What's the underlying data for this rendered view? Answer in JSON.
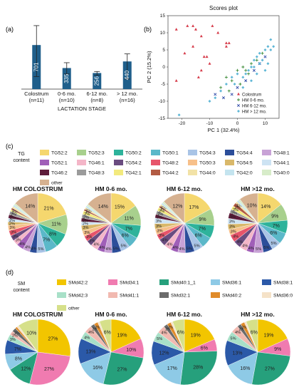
{
  "chart_data": [
    {
      "panel": "(a)",
      "type": "bar",
      "xlabel": "LACTATION STAGE",
      "categories": [
        "Colostrum\n(n=11)",
        "0-6 mo.\n(n=10)",
        "6-12 mo.\n(n=8)",
        "> 12 mo.\n(n=16)"
      ],
      "values": [
        701,
        335,
        256,
        440
      ],
      "error_up": [
        1010,
        420,
        280,
        560
      ],
      "error_down": [
        200,
        240,
        220,
        160
      ],
      "ylim": [
        0,
        1100
      ]
    },
    {
      "panel": "(b)",
      "type": "scatter",
      "title": "Scores plot",
      "xlabel": "PC 1 (32.4%)",
      "ylabel": "PC 2 (15.2%)",
      "xlim": [
        -25,
        15
      ],
      "ylim": [
        -15,
        15
      ],
      "xticks": [
        -20,
        -10,
        0,
        10
      ],
      "yticks": [
        -15,
        -10,
        -5,
        0,
        5,
        10,
        15
      ],
      "legend_position": "bottom-right",
      "series": [
        {
          "name": "Colostrum",
          "color": "#d63b4a",
          "marker": "triangle",
          "points": [
            [
              -22,
              11
            ],
            [
              -18,
              12
            ],
            [
              -16,
              12
            ],
            [
              -15,
              11
            ],
            [
              -13,
              9
            ],
            [
              -9,
              12
            ],
            [
              -7,
              10
            ],
            [
              -4,
              6
            ],
            [
              -4,
              7
            ],
            [
              -3,
              7
            ],
            [
              -19,
              4
            ],
            [
              -16,
              6
            ],
            [
              -12,
              3
            ],
            [
              -11,
              3
            ],
            [
              -10,
              1
            ],
            [
              -13,
              -1
            ],
            [
              -22,
              -4
            ],
            [
              -14,
              -3
            ]
          ]
        },
        {
          "name": "HM 0-6 mo.",
          "color": "#3a8a35",
          "marker": "plus",
          "points": [
            [
              -4,
              -3
            ],
            [
              -2,
              -4
            ],
            [
              0,
              -1
            ],
            [
              2,
              0
            ],
            [
              3,
              -1
            ],
            [
              5,
              1
            ],
            [
              -6,
              -6
            ],
            [
              -3,
              -7
            ],
            [
              1,
              -5
            ],
            [
              4,
              -2
            ],
            [
              7,
              2
            ],
            [
              9,
              4
            ]
          ]
        },
        {
          "name": "HM 6-12 mo.",
          "color": "#2f4aa8",
          "marker": "cross",
          "points": [
            [
              -8,
              -8
            ],
            [
              -5,
              -9
            ],
            [
              -2,
              -8
            ],
            [
              0,
              -6
            ],
            [
              3,
              -4
            ],
            [
              6,
              -1
            ],
            [
              8,
              1
            ],
            [
              10,
              3
            ]
          ]
        },
        {
          "name": "HM > 12 mo.",
          "color": "#5fb7d6",
          "marker": "diamond",
          "points": [
            [
              -21,
              -14
            ],
            [
              -10,
              -10
            ],
            [
              -8,
              -9
            ],
            [
              -6,
              -7
            ],
            [
              -4,
              -5
            ],
            [
              -1,
              -5
            ],
            [
              2,
              -3
            ],
            [
              4,
              -1
            ],
            [
              5,
              0
            ],
            [
              6,
              2
            ],
            [
              7,
              3
            ],
            [
              8,
              1
            ],
            [
              9,
              2
            ],
            [
              10,
              5
            ],
            [
              11,
              6
            ],
            [
              12,
              5
            ],
            [
              3,
              -2
            ],
            [
              -2,
              -3
            ],
            [
              0,
              -2
            ],
            [
              6,
              0
            ],
            [
              8,
              4
            ],
            [
              11,
              1
            ],
            [
              10,
              -1
            ],
            [
              5,
              -4
            ],
            [
              13,
              6
            ],
            [
              12,
              8
            ],
            [
              7,
              -2
            ],
            [
              2,
              -6
            ]
          ]
        }
      ]
    },
    {
      "panel": "(c)",
      "type": "pie",
      "legend_title": "TG\ncontent",
      "legend": [
        {
          "label": "TG52:2",
          "color": "#f5d76e"
        },
        {
          "label": "TG52:3",
          "color": "#a8d08d"
        },
        {
          "label": "TG50:2",
          "color": "#2eb39b"
        },
        {
          "label": "TG50:1",
          "color": "#5bb8c9"
        },
        {
          "label": "TG54:3",
          "color": "#a9c4e6"
        },
        {
          "label": "TG54:4",
          "color": "#2c4e9a"
        },
        {
          "label": "TG48:1",
          "color": "#c8a2d6"
        },
        {
          "label": "TG52:1",
          "color": "#a05fb8"
        },
        {
          "label": "TG46:1",
          "color": "#f4b6c8"
        },
        {
          "label": "TG54:2",
          "color": "#6a4c80"
        },
        {
          "label": "TG48:2",
          "color": "#e7546a"
        },
        {
          "label": "TG50:3",
          "color": "#f7c08a"
        },
        {
          "label": "TG54:5",
          "color": "#d9b86a"
        },
        {
          "label": "TG44:1",
          "color": "#cde3f3"
        },
        {
          "label": "TG46:2",
          "color": "#5e1c3a"
        },
        {
          "label": "TG48:3",
          "color": "#9b9b9b"
        },
        {
          "label": "TG42:1",
          "color": "#f3ea7e"
        },
        {
          "label": "TG44:2",
          "color": "#b25b43"
        },
        {
          "label": "TG44:0",
          "color": "#f2e2a7"
        },
        {
          "label": "TG42:0",
          "color": "#c4e4ef"
        },
        {
          "label": "TG40:0",
          "color": "#d7ecc9"
        },
        {
          "label": "other",
          "color": "#d6b190"
        }
      ],
      "pies": [
        {
          "title": "HM COLOSTRUM",
          "values": [
            21,
            11,
            8,
            7,
            5,
            4,
            4,
            4,
            3,
            3,
            3,
            3,
            2,
            2,
            2,
            2,
            1,
            1,
            1,
            1,
            1,
            14
          ],
          "labels": [
            "21%",
            "11%",
            "8%",
            "7%",
            "5%",
            "4%",
            "4%",
            "4%",
            "3%",
            "3%",
            "3%",
            "3%",
            "2%",
            "2%",
            "2%",
            "2%",
            "1%",
            "1%",
            "",
            "",
            "",
            "14%"
          ]
        },
        {
          "title": "HM 0-6 mo.",
          "values": [
            15,
            11,
            7,
            6,
            5,
            5,
            4,
            4,
            4,
            3,
            3,
            3,
            3,
            2,
            2,
            2,
            2,
            1,
            1,
            1,
            1,
            14
          ],
          "labels": [
            "15%",
            "11%",
            "7%",
            "6%",
            "5%",
            "5%",
            "4%",
            "4%",
            "4%",
            "3%",
            "3%",
            "3%",
            "3%",
            "2%",
            "2%",
            "2%",
            "2%",
            "1%",
            "1%",
            "",
            "",
            "14%"
          ]
        },
        {
          "title": "HM 6-12 mo.",
          "values": [
            17,
            9,
            7,
            6,
            5,
            5,
            4,
            4,
            4,
            4,
            3,
            3,
            3,
            3,
            2,
            2,
            2,
            1,
            1,
            1,
            1,
            12
          ],
          "labels": [
            "17%",
            "9%",
            "7%",
            "6%",
            "5%",
            "5%",
            "4%",
            "4%",
            "4%",
            "4%",
            "3%",
            "3%",
            "3%",
            "3%",
            "2%",
            "2%",
            "2%",
            "1%",
            "1%",
            "",
            "",
            "12%"
          ]
        },
        {
          "title": "HM >12 mo.",
          "values": [
            14,
            9,
            7,
            6,
            5,
            5,
            5,
            4,
            4,
            4,
            4,
            3,
            3,
            3,
            3,
            2,
            2,
            2,
            1,
            1,
            1,
            10
          ],
          "labels": [
            "14%",
            "9%",
            "7%",
            "6%",
            "5%",
            "5%",
            "5%",
            "4%",
            "4%",
            "4%",
            "4%",
            "3%",
            "3%",
            "3%",
            "3%",
            "2%",
            "2%",
            "2%",
            "1%",
            "",
            "",
            "10%"
          ]
        }
      ]
    },
    {
      "panel": "(d)",
      "type": "pie",
      "legend_title": "SM\ncontent",
      "legend": [
        {
          "label": "SMd42:2",
          "color": "#f2c500"
        },
        {
          "label": "SMd34:1",
          "color": "#f07bb0"
        },
        {
          "label": "SMd40:1_1",
          "color": "#26a07c"
        },
        {
          "label": "SMd36:1",
          "color": "#8ecae6"
        },
        {
          "label": "SMd38:1",
          "color": "#2b59a8"
        },
        {
          "label": "SMd42:3",
          "color": "#a8e0c8"
        },
        {
          "label": "SMd41:1",
          "color": "#f1b9b0"
        },
        {
          "label": "SMd32:1",
          "color": "#6b6b6b"
        },
        {
          "label": "SMd40:2",
          "color": "#e08b2a"
        },
        {
          "label": "SMd36:0",
          "color": "#f5e2c8"
        },
        {
          "label": "other",
          "color": "#d6e08a"
        }
      ],
      "pies": [
        {
          "title": "HM COLOSTRUM",
          "values": [
            27,
            27,
            12,
            8,
            7,
            3,
            2,
            2,
            1,
            1,
            10
          ],
          "labels": [
            "27%",
            "27%",
            "12%",
            "8%",
            "7%",
            "3%",
            "2%",
            "2%",
            "",
            "",
            "10%"
          ]
        },
        {
          "title": "HM 0-6 mo.",
          "values": [
            19,
            10,
            27,
            16,
            13,
            4,
            4,
            2,
            2,
            1,
            6
          ],
          "labels": [
            "19%",
            "10%",
            "27%",
            "16%",
            "13%",
            "4%",
            "4%",
            "2%",
            "2%",
            "",
            "6%"
          ]
        },
        {
          "title": "HM 6-12 mo.",
          "values": [
            19,
            6,
            28,
            17,
            12,
            5,
            4,
            2,
            2,
            1,
            6
          ],
          "labels": [
            "19%",
            "6%",
            "28%",
            "17%",
            "12%",
            "5%",
            "4%",
            "2%",
            "2%",
            "",
            "6%"
          ]
        },
        {
          "title": "HM >12 mo.",
          "values": [
            19,
            9,
            27,
            16,
            13,
            5,
            4,
            2,
            2,
            1,
            6
          ],
          "labels": [
            "19%",
            "9%",
            "27%",
            "16%",
            "13%",
            "5%",
            "4%",
            "2%",
            "2%",
            "",
            "6%"
          ]
        }
      ]
    }
  ]
}
